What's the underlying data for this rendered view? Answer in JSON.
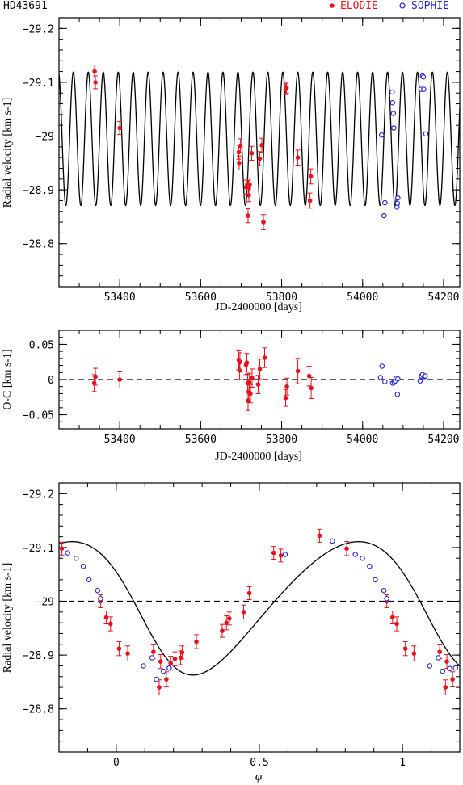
{
  "header": {
    "star": "HD43691",
    "legend": [
      {
        "name": "ELODIE",
        "color": "#e8141c",
        "marker": "filled-circle"
      },
      {
        "name": "SOPHIE",
        "color": "#1f22d6",
        "marker": "open-circle"
      }
    ]
  },
  "chart_data": [
    {
      "id": "rv_time",
      "type": "scatter",
      "title": "",
      "xlabel": "JD-2400000 [days]",
      "ylabel": "Radial velocity [km s-1]",
      "xlim": [
        53250,
        54240
      ],
      "ylim": [
        -29.22,
        -28.72
      ],
      "ylim_inverted": true,
      "xticks": [
        53400,
        53600,
        53800,
        54000,
        54200
      ],
      "yticks": [
        -28.8,
        -28.9,
        -29,
        -29.1,
        -29.2
      ],
      "ytick_labels": [
        "−28.8",
        "−28.9",
        "−29",
        "−29.1",
        "−29.2"
      ],
      "model": {
        "type": "sine",
        "period_days": 36.96,
        "mean": -28.995,
        "amplitude": 0.124,
        "epoch": 53230
      },
      "series": [
        {
          "name": "ELODIE",
          "points": [
            [
              53338,
              -29.12,
              0.012
            ],
            [
              53340,
              -29.1,
              0.012
            ],
            [
              53400,
              -29.015,
              0.012
            ],
            [
              53694,
              -28.97,
              0.013
            ],
            [
              53695,
              -28.95,
              0.013
            ],
            [
              53698,
              -28.982,
              0.013
            ],
            [
              53712,
              -28.905,
              0.013
            ],
            [
              53715,
              -28.91,
              0.012
            ],
            [
              53717,
              -28.852,
              0.013
            ],
            [
              53718,
              -28.905,
              0.013
            ],
            [
              53719,
              -28.89,
              0.012
            ],
            [
              53721,
              -28.91,
              0.012
            ],
            [
              53726,
              -28.968,
              0.013
            ],
            [
              53746,
              -28.958,
              0.013
            ],
            [
              53751,
              -28.983,
              0.013
            ],
            [
              53755,
              -28.84,
              0.014
            ],
            [
              53810,
              -29.087,
              0.01
            ],
            [
              53812,
              -29.09,
              0.01
            ],
            [
              53840,
              -28.96,
              0.014
            ],
            [
              53870,
              -28.88,
              0.014
            ],
            [
              53872,
              -28.925,
              0.014
            ]
          ]
        },
        {
          "name": "SOPHIE",
          "points": [
            [
              54047,
              -29.002
            ],
            [
              54053,
              -28.852
            ],
            [
              54055,
              -28.876
            ],
            [
              54073,
              -29.082
            ],
            [
              54074,
              -29.062
            ],
            [
              54076,
              -29.042
            ],
            [
              54077,
              -29.015
            ],
            [
              54085,
              -28.868
            ],
            [
              54086,
              -28.875
            ],
            [
              54087,
              -28.885
            ],
            [
              54144,
              -29.087
            ],
            [
              54148,
              -29.112
            ],
            [
              54150,
              -29.11
            ],
            [
              54151,
              -29.087
            ],
            [
              54156,
              -29.004
            ]
          ]
        }
      ]
    },
    {
      "id": "residuals",
      "type": "scatter",
      "title": "",
      "xlabel": "JD-2400000 [days]",
      "ylabel": "O-C [km s-1]",
      "xlim": [
        53250,
        54240
      ],
      "ylim": [
        -0.07,
        0.07
      ],
      "xticks": [
        53400,
        53600,
        53800,
        54000,
        54200
      ],
      "yticks": [
        0.05,
        0,
        -0.05
      ],
      "ytick_labels": [
        "0.05",
        "0",
        "−0.05"
      ],
      "reference_line": 0,
      "series": [
        {
          "name": "ELODIE",
          "points": [
            [
              53337,
              -0.005,
              0.012
            ],
            [
              53340,
              0.004,
              0.012
            ],
            [
              53400,
              0.0,
              0.012
            ],
            [
              53694,
              0.028,
              0.014
            ],
            [
              53696,
              0.013,
              0.013
            ],
            [
              53697,
              0.025,
              0.013
            ],
            [
              53712,
              0.021,
              0.014
            ],
            [
              53714,
              0.024,
              0.013
            ],
            [
              53716,
              -0.005,
              0.013
            ],
            [
              53717,
              -0.03,
              0.014
            ],
            [
              53719,
              -0.018,
              0.013
            ],
            [
              53720,
              -0.004,
              0.013
            ],
            [
              53723,
              -0.02,
              0.013
            ],
            [
              53727,
              0.002,
              0.013
            ],
            [
              53742,
              -0.007,
              0.013
            ],
            [
              53746,
              0.015,
              0.014
            ],
            [
              53758,
              0.031,
              0.014
            ],
            [
              53810,
              -0.026,
              0.012
            ],
            [
              53813,
              -0.01,
              0.012
            ],
            [
              53840,
              0.012,
              0.018
            ],
            [
              53868,
              0.005,
              0.014
            ],
            [
              53873,
              -0.012,
              0.015
            ]
          ]
        },
        {
          "name": "SOPHIE",
          "points": [
            [
              54044,
              0.003
            ],
            [
              54048,
              0.019
            ],
            [
              54055,
              -0.003
            ],
            [
              54074,
              -0.005
            ],
            [
              54078,
              -0.004
            ],
            [
              54080,
              -0.002
            ],
            [
              54083,
              0.002
            ],
            [
              54086,
              -0.021
            ],
            [
              54087,
              0.001
            ],
            [
              54142,
              -0.002
            ],
            [
              54145,
              0.005
            ],
            [
              54148,
              0.007
            ],
            [
              54152,
              0.004
            ],
            [
              54155,
              0.005
            ]
          ]
        }
      ]
    },
    {
      "id": "phase",
      "type": "scatter",
      "title": "",
      "xlabel": "φ",
      "ylabel": "Radial velocity [km s-1]",
      "xlim": [
        -0.2,
        1.2
      ],
      "ylim": [
        -29.22,
        -28.72
      ],
      "ylim_inverted": true,
      "xticks": [
        0,
        0.5,
        1
      ],
      "xtick_labels": [
        "0",
        "0.5",
        "1"
      ],
      "yticks": [
        -28.8,
        -28.9,
        -29,
        -29.1,
        -29.2
      ],
      "ytick_labels": [
        "−28.8",
        "−28.9",
        "−29",
        "−29.1",
        "−29.2"
      ],
      "reference_line": -29.0,
      "model": {
        "type": "keplerian",
        "K": 0.124,
        "gamma": -28.995,
        "e": 0.14,
        "omega_rad": 5.2,
        "mean_anomaly_at_phase0": 5.45
      },
      "series": [
        {
          "name": "ELODIE",
          "points": [
            [
              -0.19,
              -29.098,
              0.012
            ],
            [
              -0.055,
              -29.0,
              0.012
            ],
            [
              -0.035,
              -28.97,
              0.012
            ],
            [
              -0.02,
              -28.958,
              0.013
            ],
            [
              0.01,
              -28.912,
              0.013
            ],
            [
              0.04,
              -28.903,
              0.014
            ],
            [
              0.13,
              -28.906,
              0.013
            ],
            [
              0.15,
              -28.84,
              0.014
            ],
            [
              0.155,
              -28.888,
              0.013
            ],
            [
              0.175,
              -28.855,
              0.014
            ],
            [
              0.19,
              -28.885,
              0.013
            ],
            [
              0.205,
              -28.893,
              0.013
            ],
            [
              0.225,
              -28.895,
              0.013
            ],
            [
              0.23,
              -28.905,
              0.012
            ],
            [
              0.28,
              -28.925,
              0.013
            ],
            [
              0.37,
              -28.945,
              0.012
            ],
            [
              0.385,
              -28.96,
              0.013
            ],
            [
              0.395,
              -28.968,
              0.012
            ],
            [
              0.445,
              -28.98,
              0.013
            ],
            [
              0.465,
              -29.015,
              0.012
            ],
            [
              0.55,
              -29.09,
              0.012
            ],
            [
              0.575,
              -29.085,
              0.012
            ],
            [
              0.71,
              -29.122,
              0.012
            ],
            [
              0.805,
              -29.098,
              0.013
            ],
            [
              0.945,
              -29.0,
              0.012
            ],
            [
              0.965,
              -28.97,
              0.012
            ],
            [
              0.98,
              -28.958,
              0.013
            ],
            [
              1.01,
              -28.912,
              0.013
            ],
            [
              1.04,
              -28.903,
              0.014
            ],
            [
              1.13,
              -28.906,
              0.013
            ],
            [
              1.15,
              -28.84,
              0.014
            ],
            [
              1.155,
              -28.888,
              0.013
            ],
            [
              1.175,
              -28.855,
              0.014
            ]
          ]
        },
        {
          "name": "SOPHIE",
          "points": [
            [
              -0.17,
              -29.09
            ],
            [
              -0.14,
              -29.08
            ],
            [
              -0.115,
              -29.065
            ],
            [
              -0.095,
              -29.04
            ],
            [
              -0.065,
              -29.02
            ],
            [
              -0.055,
              -29.005
            ],
            [
              0.095,
              -28.88
            ],
            [
              0.125,
              -28.895
            ],
            [
              0.14,
              -28.855
            ],
            [
              0.165,
              -28.87
            ],
            [
              0.185,
              -28.876
            ],
            [
              0.59,
              -29.087
            ],
            [
              0.755,
              -29.112
            ],
            [
              0.835,
              -29.087
            ],
            [
              0.86,
              -29.08
            ],
            [
              0.885,
              -29.065
            ],
            [
              0.905,
              -29.04
            ],
            [
              0.935,
              -29.02
            ],
            [
              0.945,
              -29.005
            ],
            [
              1.095,
              -28.88
            ],
            [
              1.125,
              -28.895
            ],
            [
              1.14,
              -28.87
            ],
            [
              1.165,
              -28.875
            ],
            [
              1.185,
              -28.876
            ]
          ]
        }
      ]
    }
  ]
}
